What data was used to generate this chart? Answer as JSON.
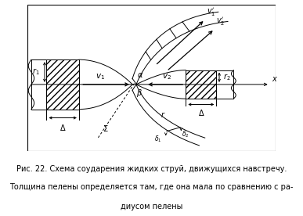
{
  "fig_width": 3.87,
  "fig_height": 2.76,
  "dpi": 100,
  "bg_color": "#ffffff",
  "caption_line1": "Рис. 22. Схема соударения жидких струй, движущихся навстречу.",
  "caption_line2": "Толщина пелены определяется там, где она мала по сравнению с ра-",
  "caption_line3": "диусом пелены",
  "caption_fontsize": 7.0
}
